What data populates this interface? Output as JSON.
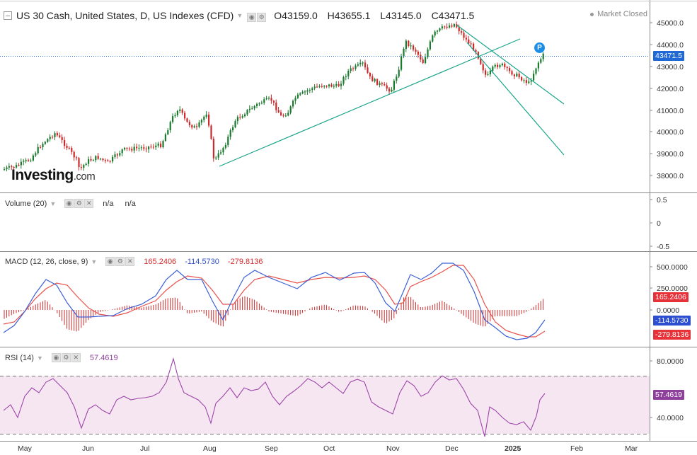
{
  "header": {
    "title": "US 30 Cash, United States, D, US Indexes (CFD)",
    "open": "O43159.0",
    "high": "H43655.1",
    "low": "L43145.0",
    "close": "C43471.5",
    "market_status": "Market Closed"
  },
  "logo": {
    "name": "Investing",
    "suffix": ".com"
  },
  "price_axis": {
    "ticks": [
      "45000.0",
      "44000.0",
      "43000.0",
      "42000.0",
      "41000.0",
      "40000.0",
      "39000.0",
      "38000.0"
    ],
    "last_price": "43471.5",
    "pin_label": "P"
  },
  "volume": {
    "label": "Volume (20)",
    "value1": "n/a",
    "value2": "n/a",
    "ticks": [
      "0.5",
      "0",
      "-0.5"
    ]
  },
  "macd": {
    "label": "MACD (12, 26, close, 9)",
    "hist": "165.2406",
    "macd": "-114.5730",
    "signal": "-279.8136",
    "ticks": [
      "500.0000",
      "250.0000",
      "0.0000"
    ],
    "tag_hist": "165.2406",
    "tag_macd": "-114.5730",
    "tag_signal": "-279.8136"
  },
  "rsi": {
    "label": "RSI (14)",
    "value": "57.4619",
    "ticks": [
      "80.0000",
      "40.0000"
    ],
    "tag": "57.4619"
  },
  "time_axis": [
    "May",
    "Jun",
    "Jul",
    "Aug",
    "Sep",
    "Oct",
    "Nov",
    "Dec",
    "2025",
    "Feb",
    "Mar"
  ],
  "colors": {
    "up": "#26a69a",
    "down": "#ef5350",
    "candle_up": "#1a7a2e",
    "candle_down": "#cc2a2a",
    "trendline": "#1aa58a",
    "macd_line": "#3b5fd6",
    "signal_line": "#e8504a",
    "rsi_line": "#9c45a8",
    "rsi_band": "#f6e6f2",
    "last_price": "#1f68d6"
  },
  "icons": {
    "symbol": "chart-type-icon",
    "settings": "gear-icon",
    "close": "close-icon",
    "visibility": "eye-icon"
  }
}
